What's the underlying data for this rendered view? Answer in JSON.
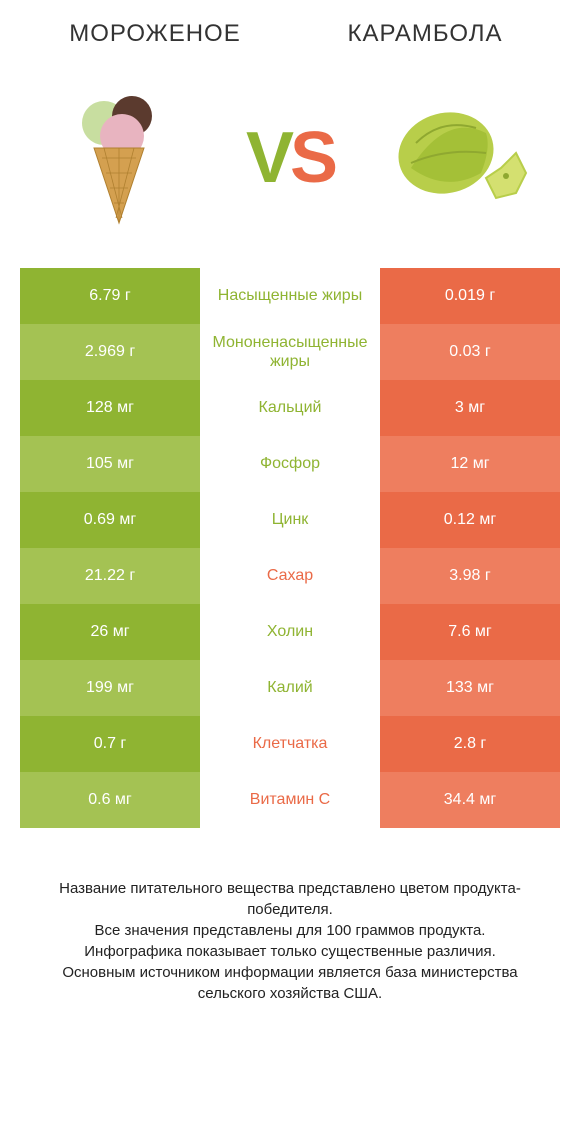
{
  "titles": {
    "left": "МОРОЖЕНОЕ",
    "right": "КАРАМБОЛА"
  },
  "vs": {
    "v": "V",
    "s": "S"
  },
  "colors": {
    "green_dark": "#8fb432",
    "green_light": "#a4c253",
    "orange_dark": "#ea6a47",
    "orange_light": "#ee7e5f",
    "white": "#ffffff",
    "text": "#333333"
  },
  "rows": [
    {
      "left": "6.79 г",
      "mid": "Насыщенные жиры",
      "right": "0.019 г",
      "winner": "left"
    },
    {
      "left": "2.969 г",
      "mid": "Мононенасыщенные жиры",
      "right": "0.03 г",
      "winner": "left"
    },
    {
      "left": "128 мг",
      "mid": "Кальций",
      "right": "3 мг",
      "winner": "left"
    },
    {
      "left": "105 мг",
      "mid": "Фосфор",
      "right": "12 мг",
      "winner": "left"
    },
    {
      "left": "0.69 мг",
      "mid": "Цинк",
      "right": "0.12 мг",
      "winner": "left"
    },
    {
      "left": "21.22 г",
      "mid": "Сахар",
      "right": "3.98 г",
      "winner": "right"
    },
    {
      "left": "26 мг",
      "mid": "Холин",
      "right": "7.6 мг",
      "winner": "left"
    },
    {
      "left": "199 мг",
      "mid": "Калий",
      "right": "133 мг",
      "winner": "left"
    },
    {
      "left": "0.7 г",
      "mid": "Клетчатка",
      "right": "2.8 г",
      "winner": "right"
    },
    {
      "left": "0.6 мг",
      "mid": "Витамин C",
      "right": "34.4 мг",
      "winner": "right"
    }
  ],
  "footer": [
    "Название питательного вещества представлено цветом продукта-победителя.",
    "Все значения представлены для 100 граммов продукта.",
    "Инфографика показывает только существенные различия.",
    "Основным источником информации является база министерства сельского хозяйства США."
  ]
}
